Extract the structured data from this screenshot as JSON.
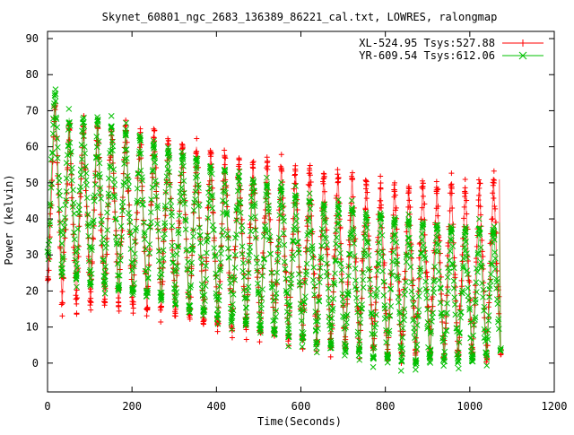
{
  "chart_data": {
    "type": "scatter",
    "title": "Skynet_60801_ngc_2683_136389_86221_cal.txt, LOWRES, ralongmap",
    "xlabel": "Time(Seconds)",
    "ylabel": "Power (kelvin)",
    "xlim": [
      0,
      1200
    ],
    "ylim": [
      -8,
      92
    ],
    "xticks": [
      "0",
      "200",
      "400",
      "600",
      "800",
      "1000",
      "1200"
    ],
    "yticks": [
      "0",
      "10",
      "20",
      "30",
      "40",
      "50",
      "60",
      "70",
      "80",
      "90"
    ],
    "legend_position": "top-right",
    "colors": {
      "xl": "#ff0000",
      "yr": "#00c000"
    },
    "series": [
      {
        "name": "XL-524.95 Tsys:527.88",
        "marker": "plus",
        "color": "#ff0000",
        "scan_period_s": 33.5,
        "sweep_peaks": [
          72,
          66,
          66,
          66,
          66,
          66,
          64,
          65,
          62,
          61,
          60,
          59,
          58,
          57,
          56,
          56,
          55,
          54,
          54,
          53,
          53,
          52,
          51,
          50,
          50,
          49,
          50,
          49,
          50,
          49,
          50,
          51,
          51
        ],
        "sweep_troughs": [
          22,
          16,
          16,
          16,
          16,
          15,
          15,
          14,
          14,
          13,
          12,
          11,
          10,
          9,
          9,
          8,
          7,
          6,
          6,
          5,
          4,
          4,
          3,
          3,
          2,
          2,
          2,
          1,
          1,
          1,
          1,
          1,
          2
        ]
      },
      {
        "name": "YR-609.54 Tsys:612.06",
        "marker": "cross",
        "color": "#00c000",
        "scan_period_s": 33.5,
        "sweep_peaks": [
          75,
          68,
          68,
          68,
          66,
          65,
          63,
          61,
          60,
          58,
          57,
          55,
          54,
          52,
          51,
          50,
          49,
          47,
          46,
          45,
          44,
          43,
          42,
          41,
          40,
          40,
          39,
          39,
          38,
          38,
          38,
          38,
          39
        ],
        "sweep_troughs": [
          30,
          24,
          23,
          22,
          21,
          20,
          19,
          18,
          17,
          16,
          14,
          13,
          12,
          11,
          10,
          9,
          8,
          7,
          6,
          5,
          4,
          3,
          2,
          1,
          0,
          0,
          -1,
          0,
          0,
          0,
          0,
          1,
          3
        ]
      }
    ]
  }
}
